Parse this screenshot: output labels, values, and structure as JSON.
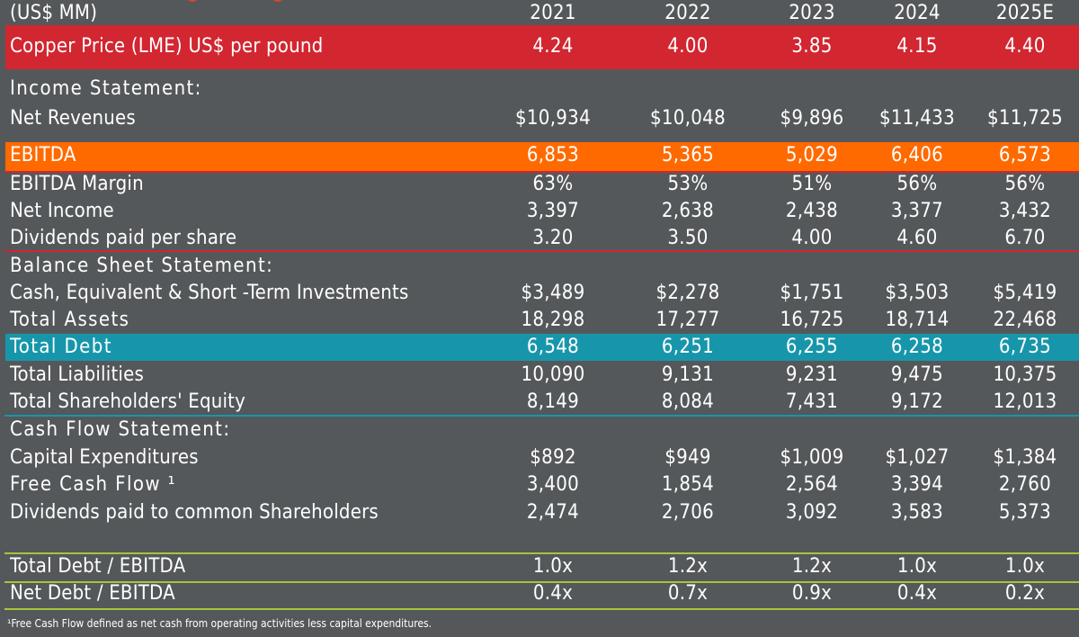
{
  "colors": {
    "background": "#54585a",
    "copper_bar": "#d22630",
    "ebitda_bar": "#ff6a00",
    "debt_bar": "#1796ab",
    "income_rule": "#d22630",
    "balance_rule": "#1796ab",
    "ratio_rule": "#a4c639"
  },
  "header": {
    "unit_label": "(US$ MM)",
    "years": [
      "2021",
      "2022",
      "2023",
      "2024",
      "2025E"
    ]
  },
  "copper": {
    "label": "Copper Price (LME) US$ per pound",
    "values": [
      "4.24",
      "4.00",
      "3.85",
      "4.15",
      "4.40"
    ]
  },
  "income": {
    "title": "Income Statement:",
    "net_revenues": {
      "label": "Net Revenues",
      "values": [
        "$10,934",
        "$10,048",
        "$9,896",
        "$11,433",
        "$11,725"
      ]
    },
    "ebitda": {
      "label": "EBITDA",
      "values": [
        "6,853",
        "5,365",
        "5,029",
        "6,406",
        "6,573"
      ]
    },
    "ebitda_margin": {
      "label": "EBITDA Margin",
      "values": [
        "63%",
        "53%",
        "51%",
        "56%",
        "56%"
      ]
    },
    "net_income": {
      "label": "Net Income",
      "values": [
        "3,397",
        "2,638",
        "2,438",
        "3,377",
        "3,432"
      ]
    },
    "dividends_per_share": {
      "label": "Dividends paid per share",
      "values": [
        "3.20",
        "3.50",
        "4.00",
        "4.60",
        "6.70"
      ]
    }
  },
  "balance": {
    "title": "Balance Sheet Statement:",
    "cash": {
      "label": "Cash, Equivalent & Short -Term Investments",
      "values": [
        "$3,489",
        "$2,278",
        "$1,751",
        "$3,503",
        "$5,419"
      ]
    },
    "total_assets": {
      "label": "Total Assets",
      "values": [
        "18,298",
        "17,277",
        "16,725",
        "18,714",
        "22,468"
      ]
    },
    "total_debt": {
      "label": "Total Debt",
      "values": [
        "6,548",
        "6,251",
        "6,255",
        "6,258",
        "6,735"
      ]
    },
    "total_liabilities": {
      "label": "Total Liabilities",
      "values": [
        "10,090",
        "9,131",
        "9,231",
        "9,475",
        "10,375"
      ]
    },
    "equity": {
      "label": "Total Shareholders' Equity",
      "values": [
        "8,149",
        "8,084",
        "7,431",
        "9,172",
        "12,013"
      ]
    }
  },
  "cashflow": {
    "title": "Cash Flow Statement:",
    "capex": {
      "label": "Capital Expenditures",
      "values": [
        "$892",
        "$949",
        "$1,009",
        "$1,027",
        "$1,384"
      ]
    },
    "fcf": {
      "label": "Free Cash Flow ¹",
      "values": [
        "3,400",
        "1,854",
        "2,564",
        "3,394",
        "2,760"
      ]
    },
    "dividends_common": {
      "label": "Dividends paid to common Shareholders",
      "values": [
        "2,474",
        "2,706",
        "3,092",
        "3,583",
        "5,373"
      ]
    }
  },
  "ratios": {
    "debt_ebitda": {
      "label": "Total Debt / EBITDA",
      "values": [
        "1.0x",
        "1.2x",
        "1.2x",
        "1.0x",
        "1.0x"
      ]
    },
    "net_debt_ebitda": {
      "label": "Net Debt / EBITDA",
      "values": [
        "0.4x",
        "0.7x",
        "0.9x",
        "0.4x",
        "0.2x"
      ]
    }
  },
  "footnote": "¹Free Cash Flow defined as net cash from operating activities less capital expenditures."
}
